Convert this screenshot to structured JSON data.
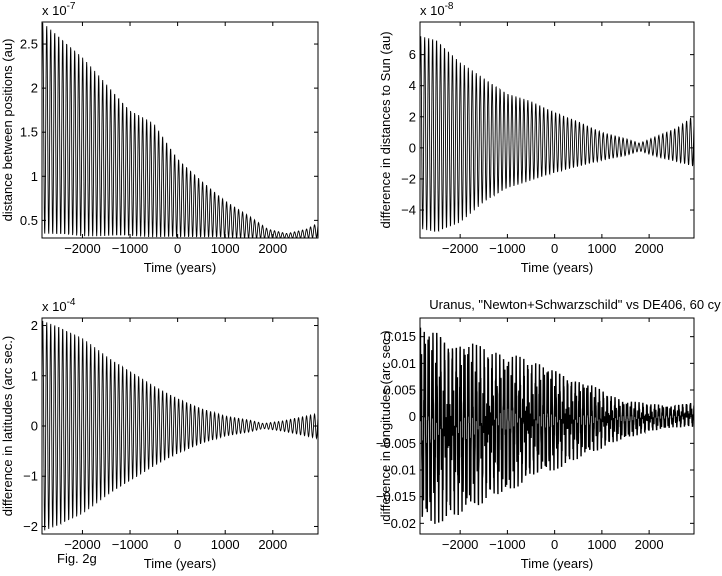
{
  "figure_label": "Fig. 2g",
  "chart_data": [
    {
      "type": "line",
      "title": "",
      "xlabel": "Time (years)",
      "ylabel": "distance between positions (au)",
      "y_exponent_label": "x 10^-7",
      "y_exponent_base": "x 10",
      "y_exponent_power": "-7",
      "xlim": [
        -2850,
        2950
      ],
      "ylim": [
        0.3,
        2.75
      ],
      "xticks": [
        -2000,
        -1000,
        0,
        1000,
        2000
      ],
      "xtick_labels": [
        "−2000",
        "−1000",
        "0",
        "1000",
        "2000"
      ],
      "yticks": [
        0.5,
        1,
        1.5,
        2,
        2.5
      ],
      "ytick_labels": [
        "0.5",
        "1",
        "1.5",
        "2",
        "2.5"
      ],
      "grid": false,
      "series": [
        {
          "kind": "oscillating_envelope",
          "x": [
            -2850,
            -2500,
            -2000,
            -1500,
            -1000,
            -500,
            0,
            500,
            1000,
            1500,
            1900,
            2300,
            2700,
            2950
          ],
          "upper": [
            2.75,
            2.6,
            2.35,
            2.05,
            1.75,
            1.6,
            1.2,
            0.95,
            0.72,
            0.55,
            0.4,
            0.35,
            0.4,
            0.47
          ],
          "lower": [
            0.35,
            0.33,
            0.32,
            0.32,
            0.32,
            0.31,
            0.31,
            0.31,
            0.31,
            0.3,
            0.3,
            0.3,
            0.3,
            0.31
          ],
          "period_years": 84
        }
      ]
    },
    {
      "type": "line",
      "title": "",
      "xlabel": "Time (years)",
      "ylabel": "difference in distances to Sun (au)",
      "y_exponent_label": "x 10^-8",
      "y_exponent_base": "x 10",
      "y_exponent_power": "-8",
      "xlim": [
        -2850,
        2950
      ],
      "ylim": [
        -5.8,
        8.1
      ],
      "xticks": [
        -2000,
        -1000,
        0,
        1000,
        2000
      ],
      "xtick_labels": [
        "−2000",
        "−1000",
        "0",
        "1000",
        "2000"
      ],
      "yticks": [
        -4,
        -2,
        0,
        2,
        4,
        6
      ],
      "ytick_labels": [
        "−4",
        "−2",
        "0",
        "2",
        "4",
        "6"
      ],
      "grid": false,
      "series": [
        {
          "kind": "oscillating_envelope",
          "x": [
            -2850,
            -2500,
            -2000,
            -1500,
            -1000,
            -500,
            0,
            500,
            1000,
            1500,
            1800,
            2200,
            2600,
            2950
          ],
          "upper": [
            7.2,
            7.0,
            5.5,
            4.5,
            3.5,
            3.0,
            2.3,
            1.7,
            1.0,
            0.6,
            0.3,
            0.8,
            1.3,
            2.1
          ],
          "lower": [
            -5.2,
            -5.5,
            -4.8,
            -3.5,
            -2.6,
            -2.1,
            -1.6,
            -1.2,
            -0.8,
            -0.5,
            -0.2,
            -0.6,
            -0.9,
            -1.2
          ],
          "period_years": 84
        }
      ]
    },
    {
      "type": "line",
      "title": "",
      "xlabel": "Time (years)",
      "ylabel": "difference in latitudes (arc sec.)",
      "y_exponent_label": "x 10^-4",
      "y_exponent_base": "x 10",
      "y_exponent_power": "-4",
      "xlim": [
        -2850,
        2950
      ],
      "ylim": [
        -2.15,
        2.15
      ],
      "xticks": [
        -2000,
        -1000,
        0,
        1000,
        2000
      ],
      "xtick_labels": [
        "−2000",
        "−1000",
        "0",
        "1000",
        "2000"
      ],
      "yticks": [
        -2,
        -1,
        0,
        1,
        2
      ],
      "ytick_labels": [
        "−2",
        "−1",
        "0",
        "1",
        "2"
      ],
      "grid": false,
      "series": [
        {
          "kind": "oscillating_envelope",
          "x": [
            -2850,
            -2500,
            -2000,
            -1500,
            -1000,
            -500,
            0,
            500,
            1000,
            1500,
            1800,
            2200,
            2600,
            2950
          ],
          "upper": [
            2.1,
            2.0,
            1.75,
            1.4,
            1.1,
            0.8,
            0.55,
            0.35,
            0.2,
            0.12,
            0.05,
            0.1,
            0.18,
            0.25
          ],
          "lower": [
            -2.1,
            -2.0,
            -1.75,
            -1.4,
            -1.1,
            -0.8,
            -0.55,
            -0.35,
            -0.2,
            -0.12,
            -0.05,
            -0.1,
            -0.18,
            -0.25
          ],
          "period_years": 84
        }
      ]
    },
    {
      "type": "line",
      "title": "Uranus, \"Newton+Schwarzschild\" vs DE406, 60 cy",
      "xlabel": "Time (years)",
      "ylabel": "difference in longitudes (arc sec.)",
      "xlim": [
        -2850,
        2950
      ],
      "ylim": [
        -0.022,
        0.0185
      ],
      "xticks": [
        -2000,
        -1000,
        0,
        1000,
        2000
      ],
      "xtick_labels": [
        "−2000",
        "−1000",
        "0",
        "1000",
        "2000"
      ],
      "yticks": [
        -0.02,
        -0.015,
        -0.01,
        -0.005,
        0,
        0.005,
        0.01,
        0.015
      ],
      "ytick_labels": [
        "−0.02",
        "−0.015",
        "−0.01",
        "−0.005",
        "0",
        "0.005",
        "0.01",
        "0.015"
      ],
      "grid": false,
      "series": [
        {
          "kind": "dense_noisy_envelope",
          "x": [
            -2850,
            -2500,
            -2000,
            -1500,
            -1000,
            -500,
            0,
            500,
            1000,
            1500,
            2000,
            2500,
            2950
          ],
          "upper": [
            0.017,
            0.016,
            0.0145,
            0.013,
            0.012,
            0.0105,
            0.009,
            0.007,
            0.005,
            0.003,
            0.0025,
            0.002,
            0.003
          ],
          "lower": [
            -0.021,
            -0.02,
            -0.0185,
            -0.0165,
            -0.014,
            -0.012,
            -0.01,
            -0.008,
            -0.006,
            -0.004,
            -0.003,
            -0.002,
            -0.002
          ],
          "period_years": 84
        }
      ]
    }
  ]
}
